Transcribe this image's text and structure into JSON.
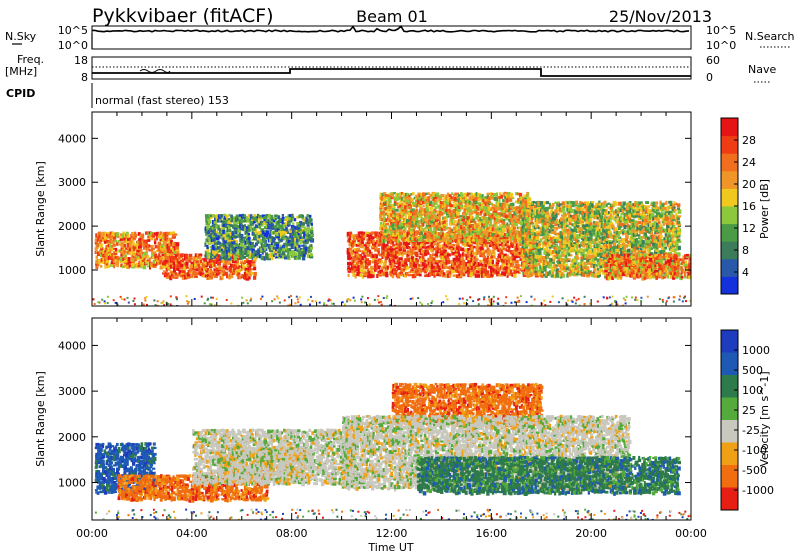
{
  "header": {
    "station": "Pykkvibaer (fitACF)",
    "beam": "Beam 01",
    "date": "25/Nov/2013"
  },
  "nsky_panel": {
    "left_label": "N.Sky",
    "right_label": "N.Search",
    "left_ticks": [
      "10^5",
      "10^0"
    ],
    "right_ticks": [
      "10^5",
      "10^0"
    ]
  },
  "freq_panel": {
    "left_label_1": "Freq.",
    "left_label_2": "[MHz]",
    "left_ticks": [
      "18",
      "8"
    ],
    "right_label": "Nave",
    "right_ticks": [
      "60",
      "0"
    ]
  },
  "cpid_panel": {
    "label": "CPID",
    "text": "normal (fast stereo) 153"
  },
  "chart_data": [
    {
      "type": "heatmap",
      "name": "power",
      "ylabel": "Slant Range [km]",
      "ylim": [
        180,
        4600
      ],
      "yticks": [
        "1000",
        "2000",
        "3000",
        "4000"
      ],
      "xlim": [
        "00:00",
        "24:00"
      ],
      "colorbar": {
        "label": "Power [dB]",
        "ticks": [
          "4",
          "8",
          "12",
          "16",
          "20",
          "24",
          "28"
        ],
        "colors": [
          "#1432dc",
          "#2a58a8",
          "#3c7c5a",
          "#4a9a46",
          "#8cc83c",
          "#f0c81e",
          "#f09628",
          "#f06e1e",
          "#f03c14",
          "#e61414"
        ]
      },
      "features": [
        {
          "t0": 0.1,
          "t1": 3.4,
          "r0": 1100,
          "r1": 1900,
          "level": 26
        },
        {
          "t0": 2.8,
          "t1": 6.5,
          "r0": 850,
          "r1": 1400,
          "level": 30
        },
        {
          "t0": 4.5,
          "t1": 8.8,
          "r0": 1300,
          "r1": 2300,
          "level": 12
        },
        {
          "t0": 10.2,
          "t1": 17.8,
          "r0": 900,
          "r1": 1900,
          "level": 28
        },
        {
          "t0": 11.5,
          "t1": 17.5,
          "r0": 1700,
          "r1": 2800,
          "level": 22
        },
        {
          "t0": 17.2,
          "t1": 23.5,
          "r0": 900,
          "r1": 2600,
          "level": 18
        },
        {
          "t0": 20.5,
          "t1": 24.0,
          "r0": 850,
          "r1": 1400,
          "level": 26
        }
      ]
    },
    {
      "type": "heatmap",
      "name": "velocity",
      "ylabel": "Slant Range [km]",
      "xlabel": "Time UT",
      "ylim": [
        180,
        4600
      ],
      "yticks": [
        "1000",
        "2000",
        "3000",
        "4000"
      ],
      "xticks": [
        "00:00",
        "04:00",
        "08:00",
        "12:00",
        "16:00",
        "20:00",
        "00:00"
      ],
      "colorbar": {
        "label": "Velocity [m s^-1]",
        "ticks": [
          "1000",
          "500",
          "100",
          "25",
          "-25",
          "-100",
          "-500",
          "-1000"
        ],
        "colors": [
          "#1e3cbe",
          "#1e5ab4",
          "#2d7a4b",
          "#55aa3c",
          "#c8c8be",
          "#f0a014",
          "#f06e0f",
          "#e61e14"
        ]
      },
      "features": [
        {
          "t0": 0.1,
          "t1": 2.5,
          "r0": 800,
          "r1": 1900,
          "v": 300
        },
        {
          "t0": 1.0,
          "t1": 7.0,
          "r0": 650,
          "r1": 1200,
          "v": -300
        },
        {
          "t0": 5.0,
          "t1": 8.5,
          "r0": 1200,
          "r1": 1800,
          "v": -150
        },
        {
          "t0": 4.0,
          "t1": 10.5,
          "r0": 1000,
          "r1": 2200,
          "v": 0
        },
        {
          "t0": 12.0,
          "t1": 18.0,
          "r0": 2300,
          "r1": 3200,
          "v": -400
        },
        {
          "t0": 10.0,
          "t1": 21.5,
          "r0": 900,
          "r1": 2500,
          "v": 0
        },
        {
          "t0": 13.0,
          "t1": 23.5,
          "r0": 800,
          "r1": 1600,
          "v": 150
        }
      ]
    }
  ]
}
